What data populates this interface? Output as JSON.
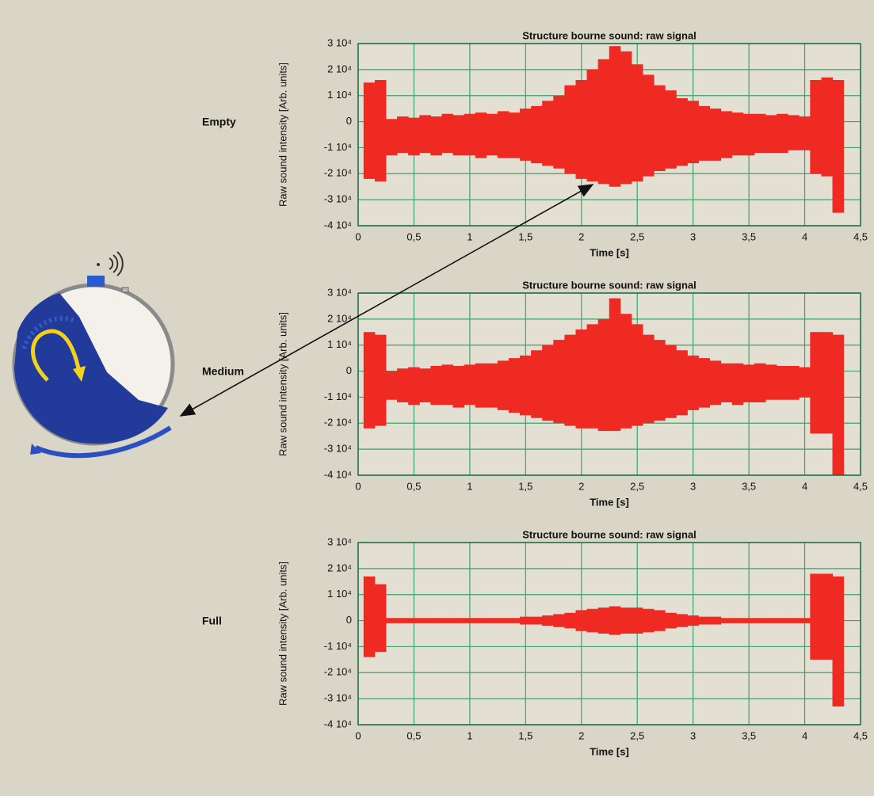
{
  "chart_data": [
    {
      "type": "envelope",
      "label": "Empty",
      "title": "Structure bourne sound: raw signal",
      "x_label": "Time [s]",
      "y_label": "Raw sound intensity [Arb. units]",
      "xlim": [
        0,
        4.5
      ],
      "ylim": [
        -40000,
        30000
      ],
      "grid": true,
      "color": "#ee2a22",
      "xticks": [
        0,
        {
          "value": 0.5,
          "label": "0,5"
        },
        1,
        {
          "value": 1.5,
          "label": "1,5"
        },
        2,
        {
          "value": 2.5,
          "label": "2,5"
        },
        3,
        {
          "value": 3.5,
          "label": "3,5"
        },
        4,
        {
          "value": 4.5,
          "label": "4,5"
        }
      ],
      "yticks": [
        {
          "value": 30000,
          "label": "3 10⁴"
        },
        {
          "value": 20000,
          "label": "2 10⁴"
        },
        {
          "value": 10000,
          "label": "1 10⁴"
        },
        0,
        {
          "value": -10000,
          "label": "-1 10⁴"
        },
        {
          "value": -20000,
          "label": "-2 10⁴"
        },
        {
          "value": -30000,
          "label": "-3 10⁴"
        },
        {
          "value": -40000,
          "label": "-4 10⁴"
        }
      ],
      "x": [
        0.1,
        0.2,
        0.3,
        0.4,
        0.5,
        0.6,
        0.7,
        0.8,
        0.9,
        1,
        1.1,
        1.2,
        1.3,
        1.4,
        1.5,
        1.6,
        1.7,
        1.8,
        1.9,
        2,
        2.1,
        2.2,
        2.3,
        2.4,
        2.5,
        2.6,
        2.7,
        2.8,
        2.9,
        3,
        3.1,
        3.2,
        3.3,
        3.4,
        3.5,
        3.6,
        3.7,
        3.8,
        3.9,
        4,
        4.1,
        4.2,
        4.3
      ],
      "series": [
        {
          "values": [
            15000,
            16000,
            1000,
            2000,
            1500,
            2500,
            2000,
            3000,
            2500,
            3000,
            3500,
            3000,
            4000,
            3500,
            5000,
            6000,
            8000,
            10000,
            14000,
            16000,
            20000,
            24000,
            29000,
            27000,
            22000,
            18000,
            14000,
            12000,
            9000,
            8000,
            6000,
            5000,
            4000,
            3500,
            3000,
            3000,
            2500,
            3000,
            2500,
            2000,
            16000,
            17000,
            16000
          ]
        },
        {
          "values": [
            -22000,
            -23000,
            -13000,
            -12000,
            -13000,
            -12000,
            -13000,
            -12000,
            -13000,
            -13000,
            -14000,
            -13000,
            -14000,
            -14000,
            -15000,
            -16000,
            -17000,
            -18000,
            -20000,
            -22000,
            -23000,
            -24000,
            -25000,
            -24000,
            -23000,
            -21000,
            -19000,
            -18000,
            -17000,
            -16000,
            -15000,
            -15000,
            -14000,
            -13000,
            -13000,
            -12000,
            -12000,
            -12000,
            -11000,
            -11000,
            -20000,
            -21000,
            -35000
          ]
        }
      ]
    },
    {
      "type": "envelope",
      "label": "Medium",
      "title": "Structure bourne sound: raw signal",
      "x_label": "Time [s]",
      "y_label": "Raw sound intensity [Arb. units]",
      "xlim": [
        0,
        4.5
      ],
      "ylim": [
        -40000,
        30000
      ],
      "grid": true,
      "color": "#ee2a22",
      "xticks": [
        0,
        {
          "value": 0.5,
          "label": "0,5"
        },
        1,
        {
          "value": 1.5,
          "label": "1,5"
        },
        2,
        {
          "value": 2.5,
          "label": "2,5"
        },
        3,
        {
          "value": 3.5,
          "label": "3,5"
        },
        4,
        {
          "value": 4.5,
          "label": "4,5"
        }
      ],
      "yticks": [
        {
          "value": 30000,
          "label": "3 10⁴"
        },
        {
          "value": 20000,
          "label": "2 10⁴"
        },
        {
          "value": 10000,
          "label": "1 10⁴"
        },
        0,
        {
          "value": -10000,
          "label": "-1 10⁴"
        },
        {
          "value": -20000,
          "label": "-2 10⁴"
        },
        {
          "value": -30000,
          "label": "-3 10⁴"
        },
        {
          "value": -40000,
          "label": "-4 10⁴"
        }
      ],
      "x": [
        0.1,
        0.2,
        0.3,
        0.4,
        0.5,
        0.6,
        0.7,
        0.8,
        0.9,
        1,
        1.1,
        1.2,
        1.3,
        1.4,
        1.5,
        1.6,
        1.7,
        1.8,
        1.9,
        2,
        2.1,
        2.2,
        2.3,
        2.4,
        2.5,
        2.6,
        2.7,
        2.8,
        2.9,
        3,
        3.1,
        3.2,
        3.3,
        3.4,
        3.5,
        3.6,
        3.7,
        3.8,
        3.9,
        4,
        4.1,
        4.2,
        4.3
      ],
      "series": [
        {
          "values": [
            15000,
            14000,
            0,
            1000,
            1500,
            1000,
            2000,
            2500,
            2000,
            2500,
            3000,
            3000,
            4000,
            5000,
            6000,
            8000,
            10000,
            12000,
            14000,
            16000,
            18000,
            20000,
            28000,
            22000,
            18000,
            14000,
            12000,
            10000,
            8000,
            6000,
            5000,
            4000,
            3000,
            3000,
            2500,
            3000,
            2500,
            2000,
            2000,
            1500,
            15000,
            15000,
            14000
          ]
        },
        {
          "values": [
            -22000,
            -21000,
            -11000,
            -12000,
            -13000,
            -12000,
            -13000,
            -13000,
            -14000,
            -13000,
            -14000,
            -14000,
            -15000,
            -16000,
            -17000,
            -18000,
            -19000,
            -20000,
            -21000,
            -22000,
            -22000,
            -23000,
            -23000,
            -22000,
            -21000,
            -20000,
            -19000,
            -18000,
            -17000,
            -15000,
            -14000,
            -13000,
            -12000,
            -13000,
            -12000,
            -12000,
            -11000,
            -11000,
            -11000,
            -10000,
            -24000,
            -24000,
            -40000
          ]
        }
      ]
    },
    {
      "type": "envelope",
      "label": "Full",
      "title": "Structure bourne sound: raw signal",
      "x_label": "Time [s]",
      "y_label": "Raw sound intensity [Arb. units]",
      "xlim": [
        0,
        4.5
      ],
      "ylim": [
        -40000,
        30000
      ],
      "grid": true,
      "color": "#ee2a22",
      "xticks": [
        0,
        {
          "value": 0.5,
          "label": "0,5"
        },
        1,
        {
          "value": 1.5,
          "label": "1,5"
        },
        2,
        {
          "value": 2.5,
          "label": "2,5"
        },
        3,
        {
          "value": 3.5,
          "label": "3,5"
        },
        4,
        {
          "value": 4.5,
          "label": "4,5"
        }
      ],
      "yticks": [
        {
          "value": 30000,
          "label": "3 10⁴"
        },
        {
          "value": 20000,
          "label": "2 10⁴"
        },
        {
          "value": 10000,
          "label": "1 10⁴"
        },
        0,
        {
          "value": -10000,
          "label": "-1 10⁴"
        },
        {
          "value": -20000,
          "label": "-2 10⁴"
        },
        {
          "value": -30000,
          "label": "-3 10⁴"
        },
        {
          "value": -40000,
          "label": "-4 10⁴"
        }
      ],
      "x": [
        0.1,
        0.2,
        0.3,
        0.4,
        0.5,
        0.6,
        0.7,
        0.8,
        0.9,
        1,
        1.1,
        1.2,
        1.3,
        1.4,
        1.5,
        1.6,
        1.7,
        1.8,
        1.9,
        2,
        2.1,
        2.2,
        2.3,
        2.4,
        2.5,
        2.6,
        2.7,
        2.8,
        2.9,
        3,
        3.1,
        3.2,
        3.3,
        3.4,
        3.5,
        3.6,
        3.7,
        3.8,
        3.9,
        4,
        4.1,
        4.2,
        4.3
      ],
      "series": [
        {
          "values": [
            17000,
            14000,
            1000,
            1000,
            1000,
            1000,
            1000,
            1000,
            1000,
            1000,
            1000,
            1000,
            1000,
            1000,
            1500,
            1500,
            2000,
            2500,
            3000,
            4000,
            4500,
            5000,
            5500,
            5000,
            5000,
            4500,
            4000,
            3000,
            2500,
            2000,
            1500,
            1500,
            1000,
            1000,
            1000,
            1000,
            1000,
            1000,
            1000,
            1000,
            18000,
            18000,
            17000
          ]
        },
        {
          "values": [
            -14000,
            -12000,
            -1000,
            -1000,
            -1000,
            -1000,
            -1000,
            -1000,
            -1000,
            -1000,
            -1000,
            -1000,
            -1000,
            -1000,
            -1500,
            -1500,
            -2000,
            -2500,
            -3000,
            -4000,
            -4500,
            -5000,
            -5500,
            -5000,
            -5000,
            -4500,
            -4000,
            -3000,
            -2500,
            -2000,
            -1500,
            -1500,
            -1000,
            -1000,
            -1000,
            -1000,
            -1000,
            -1000,
            -1000,
            -1000,
            -15000,
            -15000,
            -33000
          ]
        }
      ]
    }
  ]
}
